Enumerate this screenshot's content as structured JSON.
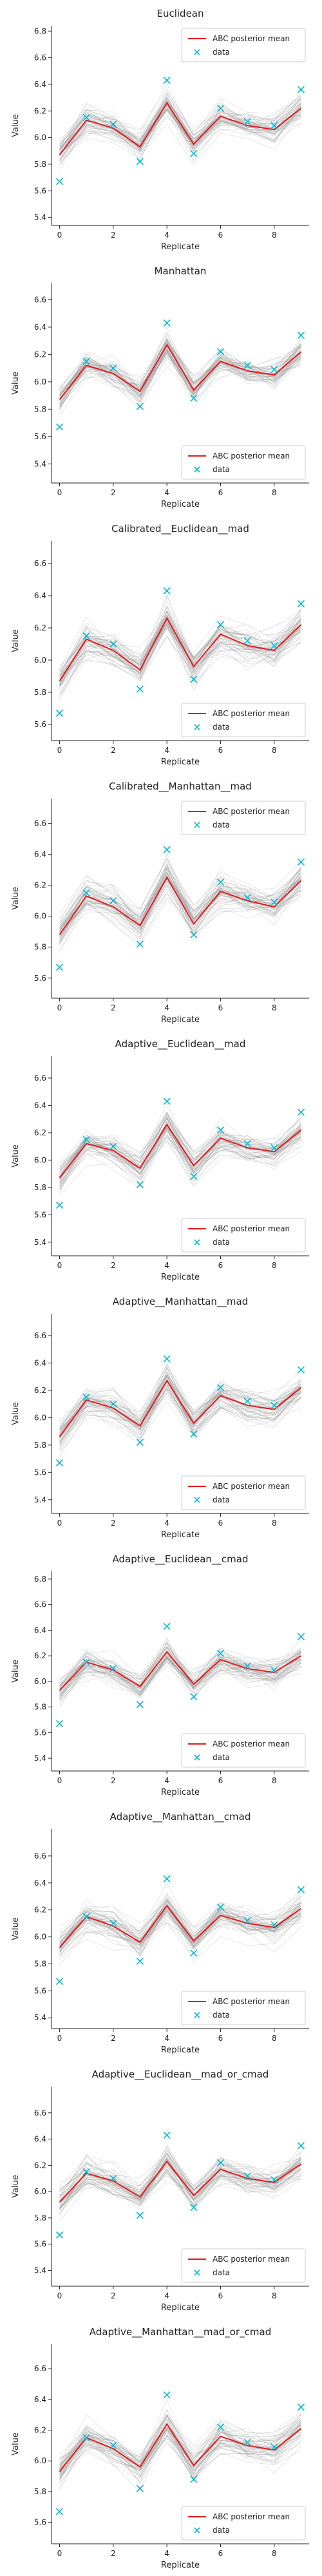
{
  "chart_data": [
    {
      "type": "line",
      "title": "Euclidean",
      "xlabel": "Replicate",
      "ylabel": "Value",
      "x": [
        0,
        1,
        2,
        3,
        4,
        5,
        6,
        7,
        8,
        9
      ],
      "xticks": [
        0,
        2,
        4,
        6,
        8
      ],
      "yticks": [
        5.4,
        5.6,
        5.8,
        6.0,
        6.2,
        6.4,
        6.6,
        6.8
      ],
      "ylim": [
        5.34,
        6.84
      ],
      "legend_position": "top-right",
      "series": [
        {
          "name": "ABC posterior mean",
          "kind": "line",
          "color": "#e41a1c",
          "values": [
            5.87,
            6.13,
            6.07,
            5.93,
            6.26,
            5.95,
            6.16,
            6.09,
            6.06,
            6.22
          ]
        },
        {
          "name": "data",
          "kind": "marker",
          "color": "#00bcd4",
          "values": [
            5.67,
            6.15,
            6.1,
            5.82,
            6.43,
            5.88,
            6.22,
            6.12,
            6.09,
            6.36
          ]
        }
      ]
    },
    {
      "type": "line",
      "title": "Manhattan",
      "xlabel": "Replicate",
      "ylabel": "Value",
      "x": [
        0,
        1,
        2,
        3,
        4,
        5,
        6,
        7,
        8,
        9
      ],
      "xticks": [
        0,
        2,
        4,
        6,
        8
      ],
      "yticks": [
        5.4,
        5.6,
        5.8,
        6.0,
        6.2,
        6.4,
        6.6
      ],
      "ylim": [
        5.26,
        6.72
      ],
      "legend_position": "bottom-right",
      "series": [
        {
          "name": "ABC posterior mean",
          "kind": "line",
          "color": "#e41a1c",
          "values": [
            5.87,
            6.12,
            6.06,
            5.93,
            6.27,
            5.94,
            6.15,
            6.08,
            6.05,
            6.22
          ]
        },
        {
          "name": "data",
          "kind": "marker",
          "color": "#00bcd4",
          "values": [
            5.67,
            6.15,
            6.1,
            5.82,
            6.43,
            5.88,
            6.22,
            6.12,
            6.09,
            6.34
          ]
        }
      ]
    },
    {
      "type": "line",
      "title": "Calibrated__Euclidean__mad",
      "xlabel": "Replicate",
      "ylabel": "Value",
      "x": [
        0,
        1,
        2,
        3,
        4,
        5,
        6,
        7,
        8,
        9
      ],
      "xticks": [
        0,
        2,
        4,
        6,
        8
      ],
      "yticks": [
        5.6,
        5.8,
        6.0,
        6.2,
        6.4,
        6.6
      ],
      "ylim": [
        5.5,
        6.74
      ],
      "legend_position": "bottom-right",
      "series": [
        {
          "name": "ABC posterior mean",
          "kind": "line",
          "color": "#e41a1c",
          "values": [
            5.87,
            6.13,
            6.06,
            5.94,
            6.26,
            5.96,
            6.16,
            6.09,
            6.06,
            6.22
          ]
        },
        {
          "name": "data",
          "kind": "marker",
          "color": "#00bcd4",
          "values": [
            5.67,
            6.15,
            6.1,
            5.82,
            6.43,
            5.88,
            6.22,
            6.12,
            6.09,
            6.35
          ]
        }
      ]
    },
    {
      "type": "line",
      "title": "Calibrated__Manhattan__mad",
      "xlabel": "Replicate",
      "ylabel": "Value",
      "x": [
        0,
        1,
        2,
        3,
        4,
        5,
        6,
        7,
        8,
        9
      ],
      "xticks": [
        0,
        2,
        4,
        6,
        8
      ],
      "yticks": [
        5.6,
        5.8,
        6.0,
        6.2,
        6.4,
        6.6
      ],
      "ylim": [
        5.47,
        6.76
      ],
      "legend_position": "top-right",
      "series": [
        {
          "name": "ABC posterior mean",
          "kind": "line",
          "color": "#e41a1c",
          "values": [
            5.88,
            6.13,
            6.06,
            5.94,
            6.25,
            5.95,
            6.16,
            6.1,
            6.06,
            6.23
          ]
        },
        {
          "name": "data",
          "kind": "marker",
          "color": "#00bcd4",
          "values": [
            5.67,
            6.15,
            6.1,
            5.82,
            6.43,
            5.88,
            6.22,
            6.12,
            6.09,
            6.35
          ]
        }
      ]
    },
    {
      "type": "line",
      "title": "Adaptive__Euclidean__mad",
      "xlabel": "Replicate",
      "ylabel": "Value",
      "x": [
        0,
        1,
        2,
        3,
        4,
        5,
        6,
        7,
        8,
        9
      ],
      "xticks": [
        0,
        2,
        4,
        6,
        8
      ],
      "yticks": [
        5.4,
        5.6,
        5.8,
        6.0,
        6.2,
        6.4,
        6.6
      ],
      "ylim": [
        5.3,
        6.76
      ],
      "legend_position": "bottom-right",
      "series": [
        {
          "name": "ABC posterior mean",
          "kind": "line",
          "color": "#e41a1c",
          "values": [
            5.87,
            6.12,
            6.07,
            5.94,
            6.26,
            5.96,
            6.16,
            6.09,
            6.06,
            6.22
          ]
        },
        {
          "name": "data",
          "kind": "marker",
          "color": "#00bcd4",
          "values": [
            5.67,
            6.15,
            6.1,
            5.82,
            6.43,
            5.88,
            6.22,
            6.12,
            6.09,
            6.35
          ]
        }
      ]
    },
    {
      "type": "line",
      "title": "Adaptive__Manhattan__mad",
      "xlabel": "Replicate",
      "ylabel": "Value",
      "x": [
        0,
        1,
        2,
        3,
        4,
        5,
        6,
        7,
        8,
        9
      ],
      "xticks": [
        0,
        2,
        4,
        6,
        8
      ],
      "yticks": [
        5.4,
        5.6,
        5.8,
        6.0,
        6.2,
        6.4,
        6.6
      ],
      "ylim": [
        5.3,
        6.76
      ],
      "legend_position": "bottom-right",
      "series": [
        {
          "name": "ABC posterior mean",
          "kind": "line",
          "color": "#e41a1c",
          "values": [
            5.86,
            6.13,
            6.07,
            5.94,
            6.27,
            5.96,
            6.16,
            6.09,
            6.06,
            6.22
          ]
        },
        {
          "name": "data",
          "kind": "marker",
          "color": "#00bcd4",
          "values": [
            5.67,
            6.15,
            6.1,
            5.82,
            6.43,
            5.88,
            6.22,
            6.12,
            6.09,
            6.35
          ]
        }
      ]
    },
    {
      "type": "line",
      "title": "Adaptive__Euclidean__cmad",
      "xlabel": "Replicate",
      "ylabel": "Value",
      "x": [
        0,
        1,
        2,
        3,
        4,
        5,
        6,
        7,
        8,
        9
      ],
      "xticks": [
        0,
        2,
        4,
        6,
        8
      ],
      "yticks": [
        5.4,
        5.6,
        5.8,
        6.0,
        6.2,
        6.4,
        6.6,
        6.8
      ],
      "ylim": [
        5.3,
        6.86
      ],
      "legend_position": "bottom-right",
      "series": [
        {
          "name": "ABC posterior mean",
          "kind": "line",
          "color": "#e41a1c",
          "values": [
            5.93,
            6.15,
            6.09,
            5.96,
            6.23,
            5.98,
            6.17,
            6.1,
            6.07,
            6.2
          ]
        },
        {
          "name": "data",
          "kind": "marker",
          "color": "#00bcd4",
          "values": [
            5.67,
            6.15,
            6.1,
            5.82,
            6.43,
            5.88,
            6.22,
            6.12,
            6.09,
            6.35
          ]
        }
      ]
    },
    {
      "type": "line",
      "title": "Adaptive__Manhattan__cmad",
      "xlabel": "Replicate",
      "ylabel": "Value",
      "x": [
        0,
        1,
        2,
        3,
        4,
        5,
        6,
        7,
        8,
        9
      ],
      "xticks": [
        0,
        2,
        4,
        6,
        8
      ],
      "yticks": [
        5.4,
        5.6,
        5.8,
        6.0,
        6.2,
        6.4,
        6.6
      ],
      "ylim": [
        5.32,
        6.8
      ],
      "legend_position": "bottom-right",
      "series": [
        {
          "name": "ABC posterior mean",
          "kind": "line",
          "color": "#e41a1c",
          "values": [
            5.92,
            6.15,
            6.08,
            5.96,
            6.23,
            5.97,
            6.16,
            6.1,
            6.07,
            6.21
          ]
        },
        {
          "name": "data",
          "kind": "marker",
          "color": "#00bcd4",
          "values": [
            5.67,
            6.15,
            6.1,
            5.82,
            6.43,
            5.88,
            6.22,
            6.12,
            6.09,
            6.35
          ]
        }
      ]
    },
    {
      "type": "line",
      "title": "Adaptive__Euclidean__mad_or_cmad",
      "xlabel": "Replicate",
      "ylabel": "Value",
      "x": [
        0,
        1,
        2,
        3,
        4,
        5,
        6,
        7,
        8,
        9
      ],
      "xticks": [
        0,
        2,
        4,
        6,
        8
      ],
      "yticks": [
        5.4,
        5.6,
        5.8,
        6.0,
        6.2,
        6.4,
        6.6
      ],
      "ylim": [
        5.28,
        6.8
      ],
      "legend_position": "bottom-right",
      "series": [
        {
          "name": "ABC posterior mean",
          "kind": "line",
          "color": "#e41a1c",
          "values": [
            5.92,
            6.14,
            6.08,
            5.96,
            6.23,
            5.97,
            6.17,
            6.1,
            6.07,
            6.21
          ]
        },
        {
          "name": "data",
          "kind": "marker",
          "color": "#00bcd4",
          "values": [
            5.67,
            6.15,
            6.1,
            5.82,
            6.43,
            5.88,
            6.22,
            6.12,
            6.09,
            6.35
          ]
        }
      ]
    },
    {
      "type": "line",
      "title": "Adaptive__Manhattan__mad_or_cmad",
      "xlabel": "Replicate",
      "ylabel": "Value",
      "x": [
        0,
        1,
        2,
        3,
        4,
        5,
        6,
        7,
        8,
        9
      ],
      "xticks": [
        0,
        2,
        4,
        6,
        8
      ],
      "yticks": [
        5.6,
        5.8,
        6.0,
        6.2,
        6.4,
        6.6
      ],
      "ylim": [
        5.46,
        6.76
      ],
      "legend_position": "bottom-right",
      "series": [
        {
          "name": "ABC posterior mean",
          "kind": "line",
          "color": "#e41a1c",
          "values": [
            5.93,
            6.15,
            6.08,
            5.96,
            6.24,
            5.97,
            6.16,
            6.1,
            6.07,
            6.21
          ]
        },
        {
          "name": "data",
          "kind": "marker",
          "color": "#00bcd4",
          "values": [
            5.67,
            6.15,
            6.1,
            5.82,
            6.43,
            5.88,
            6.22,
            6.12,
            6.09,
            6.35
          ]
        }
      ]
    }
  ],
  "colors": {
    "posterior_trace": "#8c8c8c",
    "axis": "#222222",
    "background": "#ffffff"
  }
}
